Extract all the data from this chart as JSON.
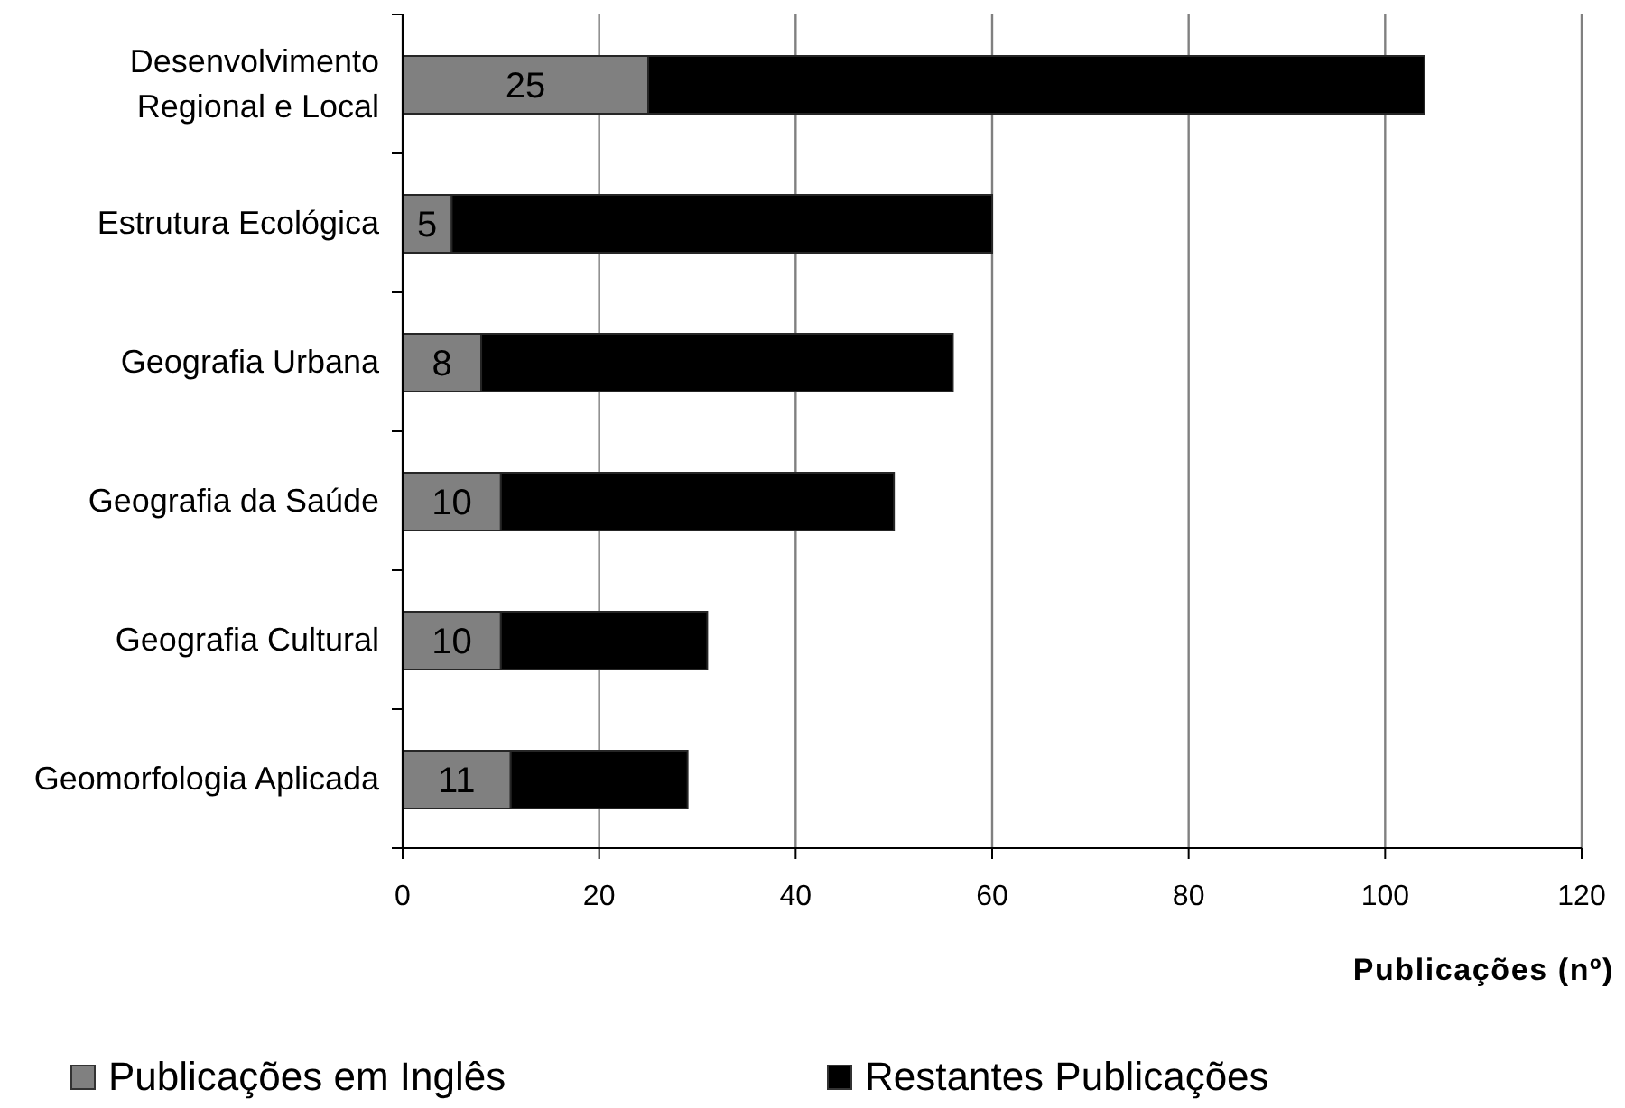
{
  "chart_data": {
    "type": "bar",
    "orientation": "horizontal",
    "stacked": true,
    "categories": [
      "Desenvolvimento Regional e Local",
      "Estrutura Ecológica",
      "Geografia Urbana",
      "Geografia da Saúde",
      "Geografia Cultural",
      "Geomorfologia Aplicada"
    ],
    "series": [
      {
        "name": "Publicações em Inglês",
        "color": "#808080",
        "values": [
          25,
          5,
          8,
          10,
          10,
          11
        ],
        "value_labels": [
          "25",
          "5",
          "8",
          "10",
          "10",
          "11"
        ]
      },
      {
        "name": "Restantes Publicações",
        "color": "#000000",
        "values": [
          79,
          55,
          48,
          40,
          21,
          18
        ]
      }
    ],
    "xlabel": "Publicações (nº)",
    "xlim": [
      0,
      120
    ],
    "xticks": [
      0,
      20,
      40,
      60,
      80,
      100,
      120
    ],
    "grid": "x",
    "legend": "bottom"
  }
}
